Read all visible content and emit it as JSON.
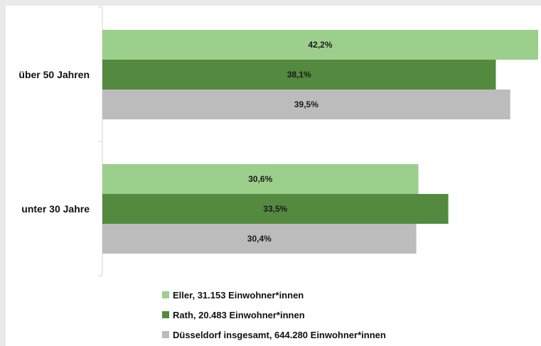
{
  "chart_data": {
    "type": "bar",
    "orientation": "horizontal",
    "categories": [
      "über 50 Jahren",
      "unter 30 Jahre"
    ],
    "series": [
      {
        "name": "Eller, 31.153 Einwohner*innen",
        "values": [
          42.2,
          30.6
        ],
        "labels": [
          "42,2%",
          "30,6%"
        ],
        "color": "#9ccf8c"
      },
      {
        "name": "Rath, 20.483 Einwohner*innen",
        "values": [
          38.1,
          33.5
        ],
        "labels": [
          "38,1%",
          "33,5%"
        ],
        "color": "#548a3f"
      },
      {
        "name": "Düsseldorf insgesamt, 644.280 Einwohner*innen",
        "values": [
          39.5,
          30.4
        ],
        "labels": [
          "39,5%",
          "30,4%"
        ],
        "color": "#bcbcbc"
      }
    ],
    "xlim": [
      0,
      42.2
    ],
    "grid": false,
    "legend": "bottom",
    "colors": {
      "background": "#e9e9e9",
      "plot_background": "#ffffff",
      "axis": "#d6d6d6"
    }
  }
}
